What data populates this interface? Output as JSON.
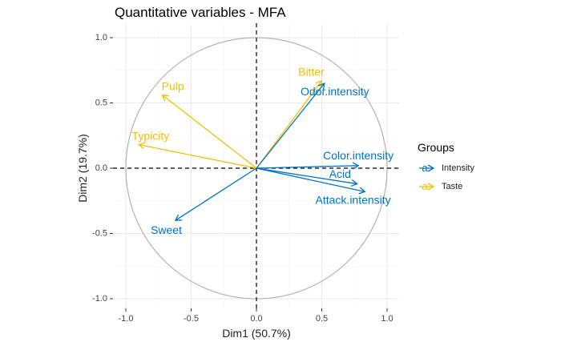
{
  "chart_data": {
    "type": "scatter",
    "title": "Quantitative variables - MFA",
    "xlabel": "Dim1 (50.7%)",
    "ylabel": "Dim2 (19.7%)",
    "xlim": [
      -1.1,
      1.1
    ],
    "ylim": [
      -1.08,
      1.1
    ],
    "x_ticks": [
      -1.0,
      -0.5,
      0.0,
      0.5,
      1.0
    ],
    "x_tick_labels": [
      "-1.0",
      "-0.5",
      "0.0",
      "0.5",
      "1.0"
    ],
    "y_ticks": [
      -1.0,
      -0.5,
      0.0,
      0.5,
      1.0
    ],
    "y_tick_labels": [
      "-1.0",
      "-0.5",
      "0.0",
      "0.5",
      "1.0"
    ],
    "grid": true,
    "correlation_circle": true,
    "legend": {
      "title": "Groups",
      "position": "right",
      "entries": [
        {
          "name": "Intensity",
          "color": "#0073C2"
        },
        {
          "name": "Taste",
          "color": "#EFC000"
        }
      ],
      "key_glyph": "a"
    },
    "variables": [
      {
        "name": "Bitter",
        "group": "Taste",
        "x": 0.5,
        "y": 0.67,
        "label_x": 0.42,
        "label_y": 0.73
      },
      {
        "name": "Odor.intensity",
        "group": "Intensity",
        "x": 0.52,
        "y": 0.65,
        "label_x": 0.6,
        "label_y": 0.58
      },
      {
        "name": "Pulp",
        "group": "Taste",
        "x": -0.72,
        "y": 0.56,
        "label_x": -0.64,
        "label_y": 0.62
      },
      {
        "name": "Typicity",
        "group": "Taste",
        "x": -0.9,
        "y": 0.18,
        "label_x": -0.81,
        "label_y": 0.24
      },
      {
        "name": "Color.intensity",
        "group": "Intensity",
        "x": 0.78,
        "y": 0.02,
        "label_x": 0.78,
        "label_y": 0.09
      },
      {
        "name": "Acid",
        "group": "Intensity",
        "x": 0.77,
        "y": -0.12,
        "label_x": 0.64,
        "label_y": -0.05
      },
      {
        "name": "Attack.intensity",
        "group": "Intensity",
        "x": 0.83,
        "y": -0.18,
        "label_x": 0.74,
        "label_y": -0.25
      },
      {
        "name": "Sweet",
        "group": "Intensity",
        "x": -0.62,
        "y": -0.4,
        "label_x": -0.69,
        "label_y": -0.48
      }
    ]
  }
}
